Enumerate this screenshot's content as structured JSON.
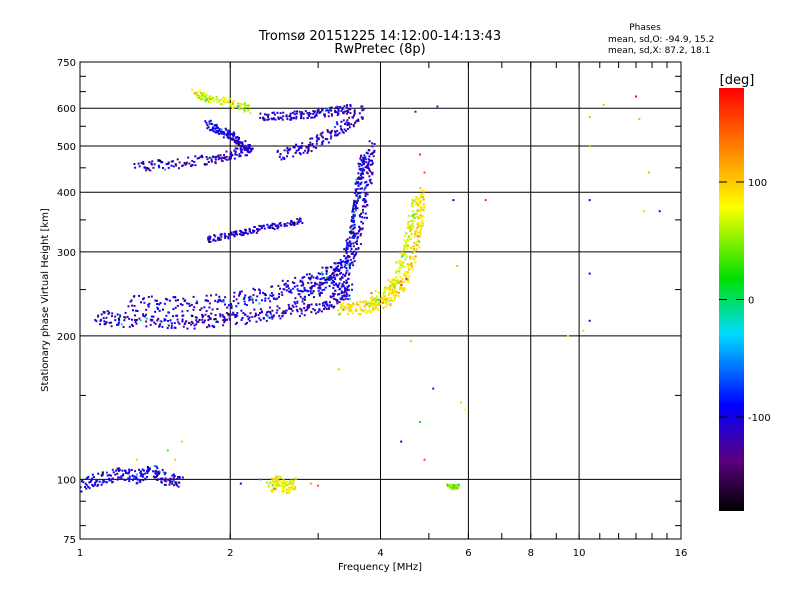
{
  "chart_data": {
    "type": "scatter",
    "title": "Tromsø 20151225 14:12:00-14:13:43",
    "subtitle": "RwPretec (8p)",
    "xlabel": "Frequency [MHz]",
    "ylabel": "Stationary phase Virtual Height [km]",
    "xscale": "log",
    "yscale": "log",
    "xlim": [
      1,
      16
    ],
    "ylim": [
      75,
      750
    ],
    "xticks": [
      1,
      2,
      4,
      6,
      8,
      10,
      16
    ],
    "xtick_labels": [
      "1",
      "2",
      "4",
      "6",
      "8",
      "10",
      "16"
    ],
    "yticks": [
      75,
      100,
      200,
      300,
      400,
      500,
      600,
      750
    ],
    "ytick_labels": [
      "75",
      "100",
      "200",
      "300",
      "400",
      "500",
      "600",
      "750"
    ],
    "grid": true,
    "phase_info": {
      "heading": "Phases",
      "line_o": "mean, sd,O: -94.9, 15.2",
      "line_x": "mean, sd,X:  87.2, 18.1"
    },
    "colorbar": {
      "label": "[deg]",
      "range": [
        -180,
        180
      ],
      "ticks": [
        100,
        0,
        -100
      ],
      "tick_labels": [
        "100",
        "0",
        "-100"
      ]
    },
    "traces": [
      {
        "x": [
          1.08,
          1.2,
          1.4,
          1.6,
          1.8,
          2.0,
          2.3,
          2.6,
          3.0,
          3.3,
          3.5
        ],
        "y": [
          220,
          216,
          214,
          214,
          215,
          217,
          220,
          224,
          230,
          238,
          250
        ],
        "phase": -110,
        "spread": 0.035
      },
      {
        "x": [
          1.25,
          1.5,
          1.8,
          2.1,
          2.4,
          2.7,
          3.0,
          3.3
        ],
        "y": [
          235,
          232,
          234,
          238,
          245,
          255,
          265,
          280
        ],
        "phase": -105,
        "spread": 0.04
      },
      {
        "x": [
          2.7,
          3.0,
          3.2,
          3.4,
          3.5,
          3.55,
          3.6,
          3.65,
          3.7
        ],
        "y": [
          240,
          250,
          265,
          290,
          320,
          360,
          400,
          440,
          480
        ],
        "phase": -100,
        "spread": 0.03
      },
      {
        "x": [
          3.2,
          3.4,
          3.55,
          3.7,
          3.8,
          3.85
        ],
        "y": [
          245,
          265,
          300,
          360,
          440,
          500
        ],
        "phase": -112,
        "spread": 0.03
      },
      {
        "x": [
          3.3,
          3.6,
          3.9,
          4.2,
          4.4,
          4.6,
          4.75,
          4.82,
          4.85
        ],
        "y": [
          228,
          228,
          232,
          240,
          255,
          280,
          320,
          360,
          400
        ],
        "phase": 90,
        "spread": 0.03
      },
      {
        "x": [
          3.8,
          4.1,
          4.3,
          4.5,
          4.6,
          4.7
        ],
        "y": [
          235,
          245,
          265,
          300,
          340,
          390
        ],
        "phase": 75,
        "spread": 0.035
      },
      {
        "x": [
          1.3,
          1.5,
          1.8,
          2.0,
          2.2
        ],
        "y": [
          450,
          458,
          468,
          478,
          490
        ],
        "phase": -112,
        "spread": 0.025
      },
      {
        "x": [
          2.5,
          2.8,
          3.1,
          3.4,
          3.7
        ],
        "y": [
          480,
          495,
          520,
          555,
          590
        ],
        "phase": -110,
        "spread": 0.03
      },
      {
        "x": [
          2.3,
          2.6,
          2.9,
          3.2,
          3.5
        ],
        "y": [
          575,
          578,
          582,
          590,
          600
        ],
        "phase": -108,
        "spread": 0.02
      },
      {
        "x": [
          1.8,
          1.9,
          2.0,
          2.1,
          2.2
        ],
        "y": [
          555,
          540,
          525,
          510,
          490
        ],
        "phase": -105,
        "spread": 0.02
      },
      {
        "x": [
          1.7,
          1.8,
          2.0,
          2.2
        ],
        "y": [
          645,
          630,
          615,
          595
        ],
        "phase": 70,
        "spread": 0.02
      },
      {
        "x": [
          1.8,
          2.0,
          2.2,
          2.5,
          2.8
        ],
        "y": [
          318,
          325,
          332,
          340,
          348
        ],
        "phase": -110,
        "spread": 0.015
      },
      {
        "x": [
          1.0,
          1.1,
          1.2,
          1.3,
          1.4,
          1.5,
          1.6
        ],
        "y": [
          97,
          100,
          103,
          101,
          104,
          100,
          99
        ],
        "phase": -105,
        "spread": 0.03
      },
      {
        "x": [
          2.4,
          2.5,
          2.6,
          2.7
        ],
        "y": [
          97,
          99,
          96,
          98
        ],
        "phase": 80,
        "spread": 0.03
      },
      {
        "x": [
          5.5,
          5.6,
          5.7
        ],
        "y": [
          97,
          96,
          97
        ],
        "phase": 50,
        "spread": 0.01
      }
    ],
    "scatter_points": [
      [
        6.5,
        385,
        160
      ],
      [
        5.6,
        385,
        -90
      ],
      [
        10.5,
        385,
        -100
      ],
      [
        10.5,
        270,
        -100
      ],
      [
        10.5,
        215,
        -110
      ],
      [
        9.5,
        200,
        70
      ],
      [
        11.2,
        610,
        110
      ],
      [
        13.0,
        635,
        175
      ],
      [
        13.2,
        570,
        110
      ],
      [
        13.8,
        440,
        110
      ],
      [
        13.5,
        365,
        100
      ],
      [
        14.5,
        365,
        -100
      ],
      [
        10.5,
        500,
        110
      ],
      [
        10.5,
        575,
        110
      ],
      [
        4.8,
        480,
        165
      ],
      [
        4.7,
        590,
        -80
      ],
      [
        5.2,
        605,
        -80
      ],
      [
        5.7,
        280,
        110
      ],
      [
        5.8,
        145,
        60
      ],
      [
        5.1,
        155,
        -80
      ],
      [
        5.9,
        140,
        80
      ],
      [
        4.9,
        110,
        150
      ],
      [
        3.3,
        170,
        60
      ],
      [
        4.4,
        120,
        -100
      ],
      [
        1.3,
        110,
        60
      ],
      [
        1.5,
        115,
        40
      ],
      [
        1.55,
        110,
        100
      ],
      [
        1.6,
        120,
        100
      ],
      [
        2.3,
        100,
        -50
      ],
      [
        2.1,
        98,
        -90
      ],
      [
        4.6,
        195,
        110
      ],
      [
        10.2,
        205,
        100
      ],
      [
        4.9,
        440,
        150
      ],
      [
        2.9,
        98,
        120
      ],
      [
        3.0,
        97,
        150
      ],
      [
        4.8,
        132,
        20
      ]
    ]
  }
}
